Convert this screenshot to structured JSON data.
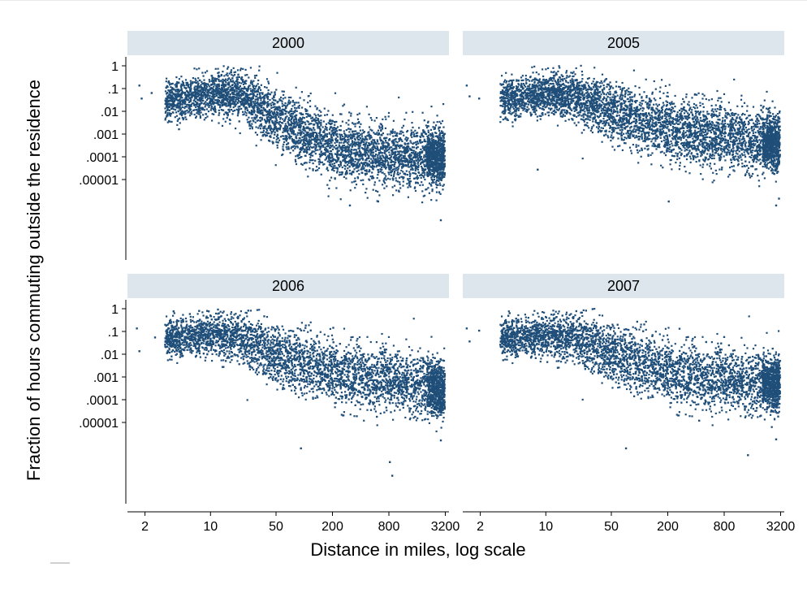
{
  "chart_data": {
    "type": "scatter",
    "layout": "2x2 panels",
    "ylabel": "Fraction of hours commuting outside the residence",
    "xlabel": "Distance in miles, log scale",
    "x_scale": "log",
    "y_scale": "log",
    "xlim": [
      1.3,
      3500
    ],
    "ylim": [
      4e-08,
      2
    ],
    "x_ticks": [
      2,
      10,
      50,
      200,
      800,
      3200
    ],
    "x_tick_labels": [
      "2",
      "10",
      "50",
      "200",
      "800",
      "3200"
    ],
    "y_ticks": [
      1,
      0.1,
      0.01,
      0.001,
      0.0001,
      1e-05
    ],
    "y_tick_labels": [
      "1",
      ".1",
      ".01",
      ".001",
      ".0001",
      ".00001"
    ],
    "marker_color": "#1f4e79",
    "strip_color": "#dce6ec",
    "grid": false,
    "panels": [
      {
        "title": "2000",
        "trend": [
          [
            4,
            0.03
          ],
          [
            10,
            0.06
          ],
          [
            20,
            0.06
          ],
          [
            50,
            0.005
          ],
          [
            200,
            0.0003
          ],
          [
            800,
            0.00012
          ],
          [
            3000,
            0.0001
          ]
        ],
        "min_y_outlier": 1.8e-07,
        "points": [
          [
            1.7,
            0.15
          ],
          [
            1.8,
            0.04
          ],
          [
            2.3,
            0.07
          ],
          [
            4.5,
            0.0018
          ],
          [
            300,
            8e-07
          ],
          [
            600,
            1.2e-06
          ],
          [
            2800,
            1.8e-07
          ]
        ]
      },
      {
        "title": "2005",
        "trend": [
          [
            4,
            0.04
          ],
          [
            10,
            0.07
          ],
          [
            20,
            0.05
          ],
          [
            50,
            0.01
          ],
          [
            200,
            0.002
          ],
          [
            800,
            0.0008
          ],
          [
            3000,
            0.0004
          ]
        ],
        "min_y_outlier": 8e-07,
        "points": [
          [
            1.4,
            0.15
          ],
          [
            1.5,
            0.05
          ],
          [
            1.9,
            0.04
          ],
          [
            8,
            3e-05
          ],
          [
            200,
            1.2e-06
          ],
          [
            2800,
            8e-07
          ],
          [
            3000,
            1.6e-06
          ]
        ]
      },
      {
        "title": "2006",
        "trend": [
          [
            4,
            0.05
          ],
          [
            10,
            0.08
          ],
          [
            20,
            0.06
          ],
          [
            50,
            0.01
          ],
          [
            200,
            0.002
          ],
          [
            800,
            0.0008
          ],
          [
            3000,
            0.0003
          ]
        ],
        "min_y_outlier": 5e-08,
        "points": [
          [
            1.6,
            0.15
          ],
          [
            1.7,
            0.015
          ],
          [
            2.5,
            0.06
          ],
          [
            90,
            8e-07
          ],
          [
            800,
            2e-07
          ],
          [
            850,
            5e-08
          ],
          [
            2800,
            1.8e-06
          ]
        ]
      },
      {
        "title": "2007",
        "trend": [
          [
            4,
            0.05
          ],
          [
            10,
            0.07
          ],
          [
            20,
            0.06
          ],
          [
            50,
            0.012
          ],
          [
            200,
            0.002
          ],
          [
            800,
            0.0008
          ],
          [
            3000,
            0.0005
          ]
        ],
        "min_y_outlier": 4e-07,
        "points": [
          [
            1.4,
            0.15
          ],
          [
            1.5,
            0.04
          ],
          [
            1.9,
            0.12
          ],
          [
            70,
            8e-07
          ],
          [
            1400,
            4e-07
          ],
          [
            2800,
            2e-06
          ]
        ]
      }
    ]
  }
}
